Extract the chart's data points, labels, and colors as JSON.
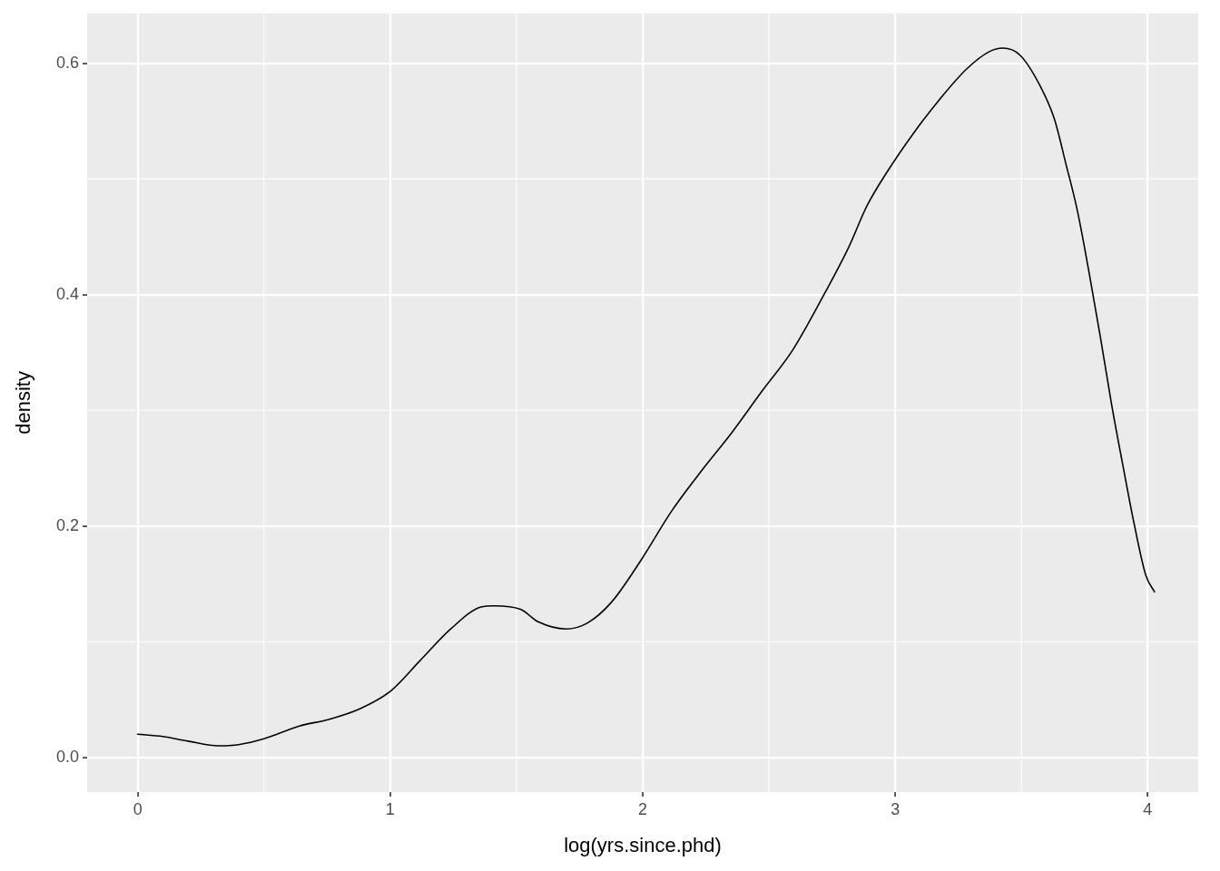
{
  "chart_data": {
    "type": "line",
    "xlabel": "log(yrs.since.phd)",
    "ylabel": "density",
    "x": [
      0,
      0.1,
      0.2,
      0.32,
      0.4,
      0.5,
      0.64,
      0.76,
      0.88,
      1.0,
      1.12,
      1.24,
      1.36,
      1.411,
      1.516,
      1.588,
      1.696,
      1.78,
      1.876,
      1.995,
      2.115,
      2.234,
      2.354,
      2.474,
      2.594,
      2.723,
      2.814,
      2.889,
      2.965,
      3.071,
      3.177,
      3.283,
      3.373,
      3.426,
      3.494,
      3.57,
      3.63,
      3.676,
      3.721,
      3.767,
      3.812,
      3.857,
      3.902,
      3.948,
      3.993,
      4.027
    ],
    "series": [
      {
        "color": "#000000",
        "values": [
          0.02,
          0.018,
          0.014,
          0.01,
          0.011,
          0.016,
          0.027,
          0.033,
          0.042,
          0.057,
          0.084,
          0.111,
          0.13,
          0.131,
          0.128,
          0.117,
          0.111,
          0.116,
          0.134,
          0.171,
          0.213,
          0.248,
          0.281,
          0.317,
          0.352,
          0.402,
          0.44,
          0.477,
          0.505,
          0.539,
          0.569,
          0.595,
          0.61,
          0.613,
          0.607,
          0.582,
          0.552,
          0.513,
          0.473,
          0.42,
          0.364,
          0.305,
          0.252,
          0.2,
          0.157,
          0.143
        ]
      }
    ],
    "xlim": [
      -0.2,
      4.2
    ],
    "xticks": [
      0,
      1,
      2,
      3,
      4
    ],
    "ylim": [
      -0.03,
      0.643
    ],
    "yticks": [
      {
        "value": 0,
        "label": "0.0"
      },
      0.2,
      0.4,
      0.6
    ],
    "grid": true,
    "marker": "none"
  }
}
